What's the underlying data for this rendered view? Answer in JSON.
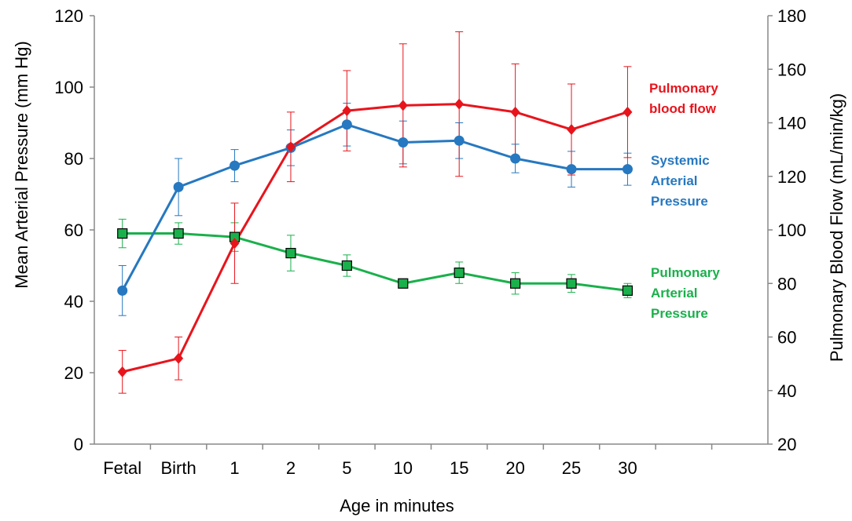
{
  "chart_data": {
    "type": "line",
    "categories": [
      "Fetal",
      "Birth",
      "1",
      "2",
      "5",
      "10",
      "15",
      "20",
      "25",
      "30"
    ],
    "xlabel": "Age in minutes",
    "ylabel_left": "Mean  Arterial Pressure (mm Hg)",
    "ylabel_right": "Pulmonary  Blood Flow  (mL/min/kg)",
    "ylim_left": [
      0,
      120
    ],
    "yticks_left": [
      "0",
      "20",
      "40",
      "60",
      "80",
      "100",
      "120"
    ],
    "ylim_right": [
      20,
      180
    ],
    "yticks_right": [
      "20",
      "40",
      "60",
      "80",
      "100",
      "120",
      "140",
      "160",
      "180"
    ],
    "grid": false,
    "series": [
      {
        "name_lines": [
          "Pulmonary",
          "blood flow"
        ],
        "axis": "right",
        "color": "#e8141c",
        "marker": "diamond",
        "values": [
          47,
          52,
          95,
          131,
          144.5,
          146.5,
          147,
          144,
          137.5,
          144
        ],
        "err_plus": [
          8,
          8,
          15,
          13,
          15,
          23,
          27,
          18,
          17,
          17
        ],
        "err_minus": [
          8,
          8,
          15,
          13,
          15,
          23,
          27,
          18,
          17,
          17
        ]
      },
      {
        "name_lines": [
          "Systemic",
          "Arterial",
          "Pressure"
        ],
        "axis": "left",
        "color": "#2678c0",
        "marker": "circle",
        "values": [
          43,
          72,
          78,
          83,
          89.5,
          84.5,
          85,
          80,
          77,
          77
        ],
        "err_plus": [
          7,
          8,
          4.5,
          5,
          6,
          6,
          5,
          4,
          5,
          4.5
        ],
        "err_minus": [
          7,
          8,
          4.5,
          5,
          6,
          6,
          5,
          4,
          5,
          4.5
        ]
      },
      {
        "name_lines": [
          "Pulmonary",
          "Arterial",
          "Pressure"
        ],
        "axis": "left",
        "color": "#1ab04b",
        "marker": "square",
        "values": [
          59,
          59,
          58,
          53.5,
          50,
          45,
          48,
          45,
          45,
          43
        ],
        "err_plus": [
          4,
          3,
          4,
          5,
          3,
          1,
          3,
          3,
          2.5,
          2
        ],
        "err_minus": [
          4,
          3,
          4,
          5,
          3,
          1,
          3,
          3,
          2.5,
          2
        ]
      }
    ]
  }
}
